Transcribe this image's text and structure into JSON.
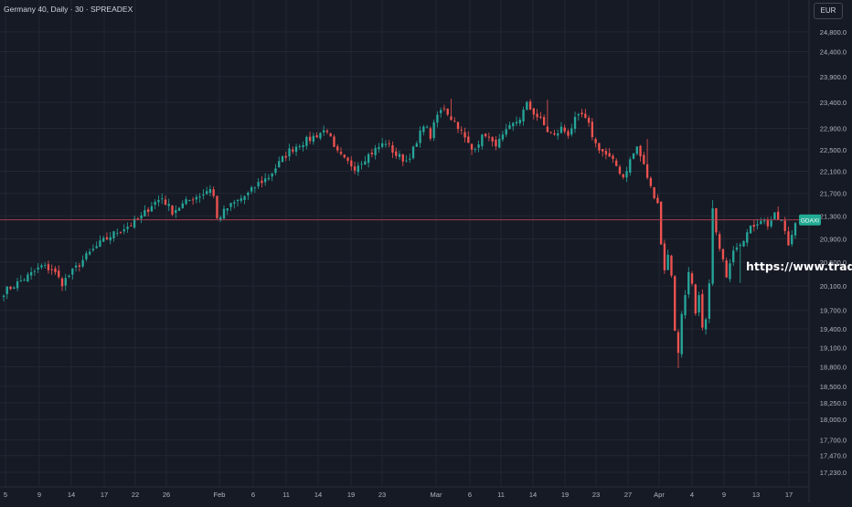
{
  "header": {
    "title": "Germany 40, Daily · 30 · SPREADEX",
    "currency": "EUR"
  },
  "watermark": "https://www.trad",
  "colors": {
    "background": "#161a25",
    "grid": "#232734",
    "up": "#26a69a",
    "down": "#ef5350",
    "price_line": "#b74250",
    "badge": "#22ab94",
    "axis_text": "#b2b5be"
  },
  "chart_data": {
    "type": "candlestick",
    "title": "Germany 40, Daily · 30 · SPREADEX",
    "y_scale": "log",
    "ylim": [
      17100,
      25300
    ],
    "grid": true,
    "y_ticks": [
      24800,
      24400,
      23900,
      23400,
      22900,
      22500,
      22100,
      21700,
      21300,
      20900,
      20500,
      20100,
      19700,
      19400,
      19100,
      18800,
      18500,
      18250,
      18000,
      17700,
      17470,
      17230
    ],
    "y_tick_labels": [
      "24,800.0",
      "24,400.0",
      "23,900.0",
      "23,400.0",
      "22,900.0",
      "22,500.0",
      "22,100.0",
      "21,700.0",
      "21,300.0",
      "20,900.0",
      "20,500.0",
      "20,100.0",
      "19,700.0",
      "19,400.0",
      "19,100.0",
      "18,800.0",
      "18,500.0",
      "18,250.0",
      "18,000.0",
      "17,700.0",
      "17,470.0",
      "17,230.0"
    ],
    "x_tick_labels": [
      "5",
      "9",
      "14",
      "17",
      "22",
      "26",
      "Feb",
      "6",
      "11",
      "14",
      "19",
      "23",
      "Mar",
      "6",
      "11",
      "14",
      "19",
      "23",
      "27",
      "Apr",
      "4",
      "9",
      "13",
      "17"
    ],
    "current_price": 21230,
    "symbol_badge": "GDAXI",
    "close_path": [
      [
        0,
        20000
      ],
      [
        4,
        20150
      ],
      [
        8,
        20300
      ],
      [
        11,
        20430
      ],
      [
        14,
        20380
      ],
      [
        17,
        20150
      ],
      [
        20,
        20340
      ],
      [
        24,
        20600
      ],
      [
        28,
        20820
      ],
      [
        31,
        20950
      ],
      [
        34,
        21060
      ],
      [
        37,
        21150
      ],
      [
        40,
        21280
      ],
      [
        43,
        21500
      ],
      [
        46,
        21620
      ],
      [
        49,
        21380
      ],
      [
        52,
        21500
      ],
      [
        55,
        21620
      ],
      [
        58,
        21700
      ],
      [
        60,
        21800
      ],
      [
        61,
        21650
      ],
      [
        62,
        21240
      ],
      [
        65,
        21440
      ],
      [
        68,
        21570
      ],
      [
        71,
        21690
      ],
      [
        74,
        21880
      ],
      [
        77,
        22000
      ],
      [
        80,
        22250
      ],
      [
        83,
        22480
      ],
      [
        86,
        22610
      ],
      [
        89,
        22700
      ],
      [
        92,
        22820
      ],
      [
        94,
        22880
      ],
      [
        96,
        22500
      ],
      [
        99,
        22300
      ],
      [
        102,
        22180
      ],
      [
        105,
        22350
      ],
      [
        108,
        22500
      ],
      [
        111,
        22640
      ],
      [
        114,
        22400
      ],
      [
        117,
        22300
      ],
      [
        120,
        22600
      ],
      [
        122,
        23000
      ],
      [
        124,
        22750
      ],
      [
        126,
        23150
      ],
      [
        128,
        23300
      ],
      [
        130,
        23100
      ],
      [
        132,
        22950
      ],
      [
        134,
        22700
      ],
      [
        136,
        22500
      ],
      [
        138,
        22650
      ],
      [
        140,
        22800
      ],
      [
        142,
        22600
      ],
      [
        144,
        22650
      ],
      [
        147,
        22900
      ],
      [
        150,
        23100
      ],
      [
        152,
        23350
      ],
      [
        154,
        23200
      ],
      [
        156,
        23050
      ],
      [
        158,
        22850
      ],
      [
        160,
        22750
      ],
      [
        162,
        22900
      ],
      [
        164,
        22800
      ],
      [
        166,
        23050
      ],
      [
        168,
        23150
      ],
      [
        170,
        22950
      ],
      [
        172,
        22600
      ],
      [
        175,
        22400
      ],
      [
        178,
        22200
      ],
      [
        180,
        22000
      ],
      [
        182,
        22300
      ],
      [
        184,
        22550
      ],
      [
        186,
        22200
      ],
      [
        188,
        21800
      ],
      [
        190,
        21550
      ],
      [
        191,
        20800
      ],
      [
        192,
        20400
      ],
      [
        193,
        20600
      ],
      [
        194,
        20300
      ],
      [
        195,
        19400
      ],
      [
        196,
        19000
      ],
      [
        197,
        19650
      ],
      [
        198,
        20000
      ],
      [
        199,
        20300
      ],
      [
        200,
        20100
      ],
      [
        201,
        19600
      ],
      [
        202,
        19900
      ],
      [
        203,
        19400
      ],
      [
        204,
        19500
      ],
      [
        205,
        20200
      ],
      [
        206,
        21400
      ],
      [
        207,
        21000
      ],
      [
        208,
        20700
      ],
      [
        210,
        20300
      ],
      [
        212,
        20750
      ],
      [
        214,
        20850
      ],
      [
        216,
        21000
      ],
      [
        218,
        21150
      ],
      [
        220,
        21250
      ],
      [
        222,
        21150
      ],
      [
        224,
        21300
      ],
      [
        226,
        21200
      ],
      [
        228,
        20800
      ],
      [
        229,
        20980
      ],
      [
        230,
        21230
      ]
    ],
    "highs_lows": [
      [
        130,
        23470
      ],
      [
        158,
        23450
      ],
      [
        187,
        22700
      ],
      [
        196,
        18780
      ],
      [
        206,
        21580
      ],
      [
        214,
        20150
      ]
    ]
  }
}
